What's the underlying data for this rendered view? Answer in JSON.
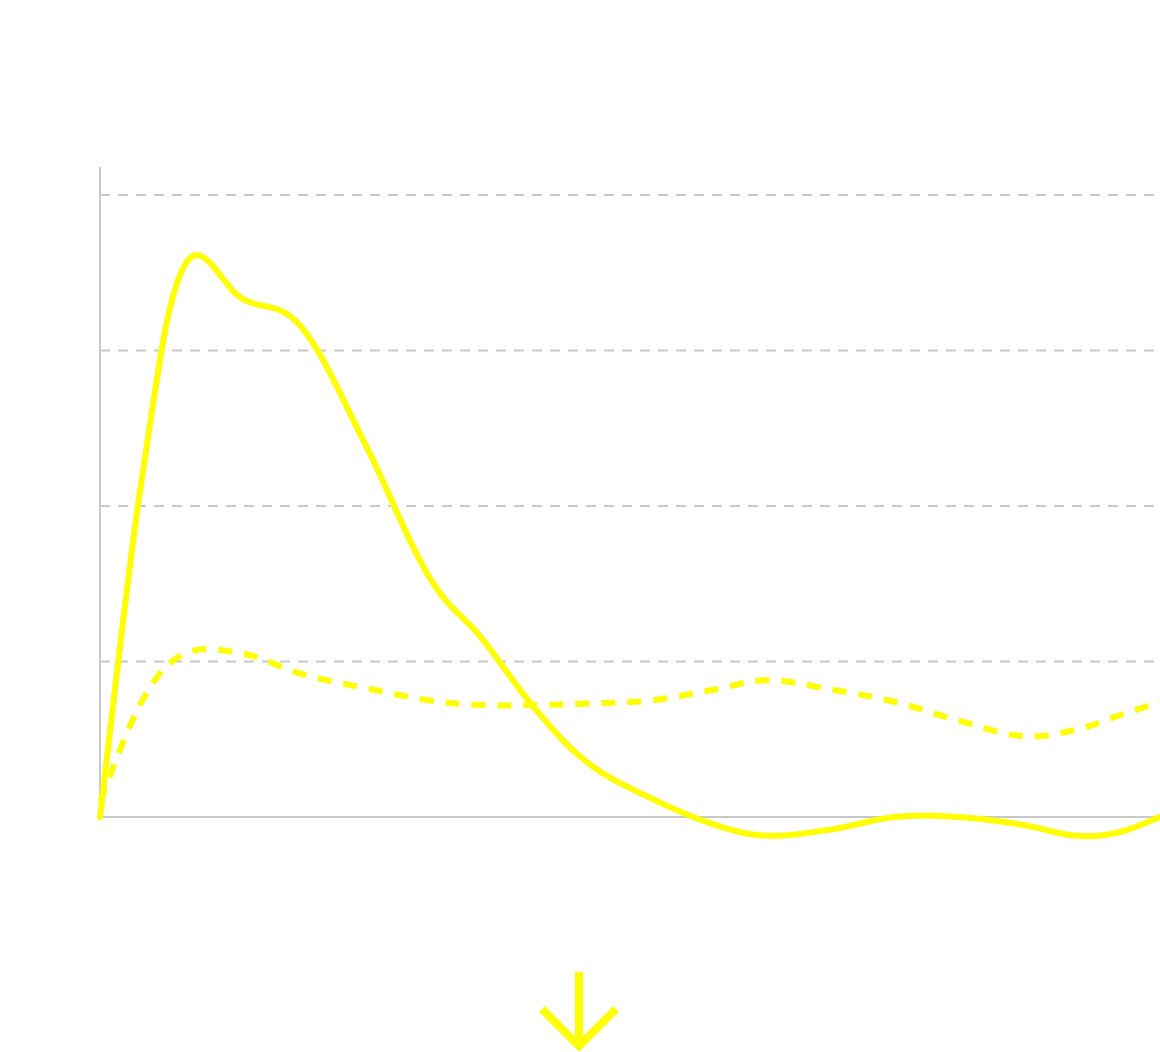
{
  "colors": {
    "background": "#ffffff",
    "series": "#ffff00",
    "grid": "#c8c8c8",
    "axis": "#c8c8c8"
  },
  "icons": {
    "scroll_hint": "arrow-down-icon"
  },
  "chart_data": {
    "type": "line",
    "title": "",
    "xlabel": "",
    "ylabel": "",
    "grid": true,
    "xlim": [
      0,
      10
    ],
    "ylim": [
      -0.2,
      5
    ],
    "gridlines_y": [
      1,
      2,
      3,
      4
    ],
    "series": [
      {
        "style": "solid",
        "x": [
          0,
          0.4,
          0.8,
          1.35,
          1.9,
          2.5,
          3.1,
          3.6,
          4.1,
          4.6,
          5.2,
          5.8,
          6.3,
          6.9,
          7.5,
          8.1,
          8.7,
          9.2,
          9.6,
          10
        ],
        "y": [
          0,
          2.2,
          3.55,
          3.33,
          3.15,
          2.4,
          1.55,
          1.15,
          0.7,
          0.35,
          0.12,
          -0.05,
          -0.12,
          -0.08,
          0.0,
          0.0,
          -0.05,
          -0.12,
          -0.1,
          0.0
        ]
      },
      {
        "style": "dashed",
        "x": [
          0,
          0.4,
          0.8,
          1.35,
          1.9,
          2.5,
          3.1,
          3.6,
          4.1,
          4.6,
          5.2,
          5.8,
          6.3,
          6.9,
          7.5,
          8.1,
          8.7,
          9.2,
          9.6,
          10
        ],
        "y": [
          0.1,
          0.75,
          1.05,
          1.05,
          0.92,
          0.83,
          0.75,
          0.72,
          0.72,
          0.73,
          0.75,
          0.82,
          0.88,
          0.82,
          0.74,
          0.62,
          0.52,
          0.56,
          0.65,
          0.74
        ]
      }
    ]
  }
}
